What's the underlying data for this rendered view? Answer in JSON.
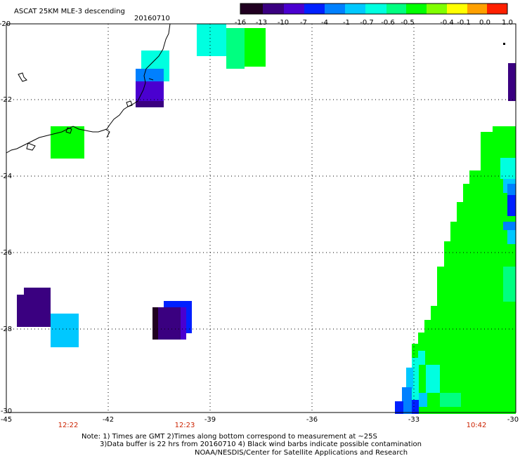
{
  "header": {
    "title": "ASCAT 25KM MLE-3 descending",
    "date": "20160710"
  },
  "colorbar": {
    "labels": [
      "-16",
      "-13",
      "-10",
      "-7",
      "-4",
      "-1",
      "-0.7",
      "-0.6",
      "-0.5",
      "-0.4",
      "-0.1",
      "0.0",
      "1.0"
    ],
    "colors": [
      "#200020",
      "#3a0080",
      "#4a00d0",
      "#0020ff",
      "#0080ff",
      "#00c8ff",
      "#00ffe0",
      "#00ff80",
      "#00ff00",
      "#80ff00",
      "#ffff00",
      "#ffa000",
      "#ff2000"
    ]
  },
  "axes": {
    "lat_labels": [
      "-20",
      "-22",
      "-24",
      "-26",
      "-28",
      "-30"
    ],
    "lon_labels": [
      "-45",
      "-42",
      "-39",
      "-36",
      "-33",
      "-30"
    ]
  },
  "time_labels": [
    "12:22",
    "12:23",
    "10:42"
  ],
  "notes": {
    "line1": "Note: 1) Times are GMT 2)Times along bottom correspond to measurement at ~25S",
    "line2": "3)Data buffer is 22 hrs from 20160710 4) Black wind barbs indicate possible contamination",
    "line3": "NOAA/NESDIS/Center for Satellite Applications and Research"
  }
}
